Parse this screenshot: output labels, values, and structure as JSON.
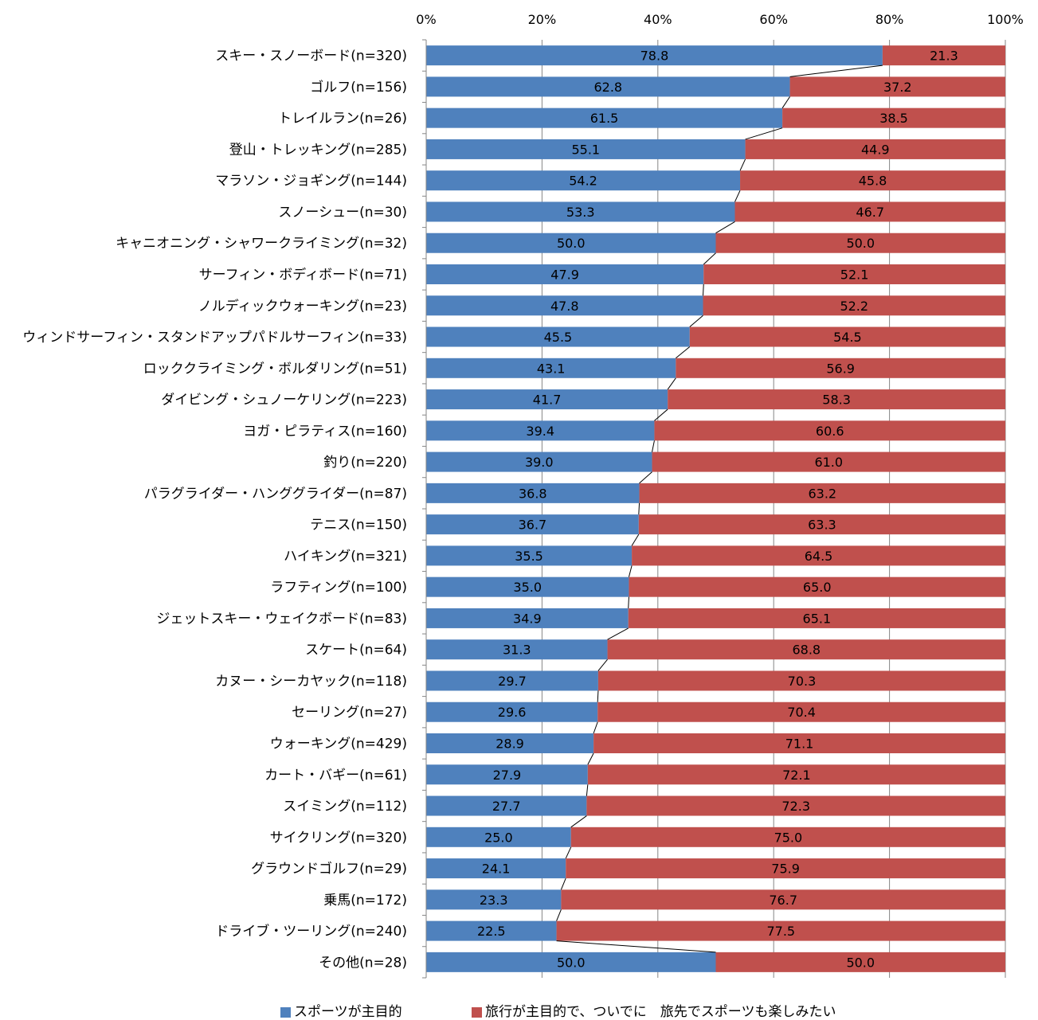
{
  "chart_data": {
    "type": "bar",
    "stacked": "percent",
    "orientation": "horizontal",
    "title": "",
    "xlabel": "",
    "ylabel": "",
    "xlim": [
      0,
      100
    ],
    "x_ticks": [
      "0%",
      "20%",
      "40%",
      "60%",
      "80%",
      "100%"
    ],
    "grid": true,
    "legend_position": "bottom",
    "categories": [
      "スキー・スノーボード(n=320)",
      "ゴルフ(n=156)",
      "トレイルラン(n=26)",
      "登山・トレッキング(n=285)",
      "マラソン・ジョギング(n=144)",
      "スノーシュー(n=30)",
      "キャニオニング・シャワークライミング(n=32)",
      "サーフィン・ボディボード(n=71)",
      "ノルディックウォーキング(n=23)",
      "ウィンドサーフィン・スタンドアップパドルサーフィン(n=33)",
      "ロッククライミング・ボルダリング(n=51)",
      "ダイビング・シュノーケリング(n=223)",
      "ヨガ・ピラティス(n=160)",
      "釣り(n=220)",
      "パラグライダー・ハンググライダー(n=87)",
      "テニス(n=150)",
      "ハイキング(n=321)",
      "ラフティング(n=100)",
      "ジェットスキー・ウェイクボード(n=83)",
      "スケート(n=64)",
      "カヌー・シーカヤック(n=118)",
      "セーリング(n=27)",
      "ウォーキング(n=429)",
      "カート・バギー(n=61)",
      "スイミング(n=112)",
      "サイクリング(n=320)",
      "グラウンドゴルフ(n=29)",
      "乗馬(n=172)",
      "ドライブ・ツーリング(n=240)",
      "その他(n=28)"
    ],
    "series": [
      {
        "name": "スポーツが主目的",
        "color": "#4F81BD",
        "values": [
          78.8,
          62.8,
          61.5,
          55.1,
          54.2,
          53.3,
          50.0,
          47.9,
          47.8,
          45.5,
          43.1,
          41.7,
          39.4,
          39.0,
          36.8,
          36.7,
          35.5,
          35.0,
          34.9,
          31.3,
          29.7,
          29.6,
          28.9,
          27.9,
          27.7,
          25.0,
          24.1,
          23.3,
          22.5,
          50.0
        ],
        "labels": [
          "78.8",
          "62.8",
          "61.5",
          "55.1",
          "54.2",
          "53.3",
          "50.0",
          "47.9",
          "47.8",
          "45.5",
          "43.1",
          "41.7",
          "39.4",
          "39.0",
          "36.8",
          "36.7",
          "35.5",
          "35.0",
          "34.9",
          "31.3",
          "29.7",
          "29.6",
          "28.9",
          "27.9",
          "27.7",
          "25.0",
          "24.1",
          "23.3",
          "22.5",
          "50.0"
        ]
      },
      {
        "name": "旅行が主目的で、ついでに　旅先でスポーツも楽しみたい",
        "color": "#C0504D",
        "values": [
          21.3,
          37.2,
          38.5,
          44.9,
          45.8,
          46.7,
          50.0,
          52.1,
          52.2,
          54.5,
          56.9,
          58.3,
          60.6,
          61.0,
          63.2,
          63.3,
          64.5,
          65.0,
          65.1,
          68.8,
          70.3,
          70.4,
          71.1,
          72.1,
          72.3,
          75.0,
          75.9,
          76.7,
          77.5,
          50.0
        ],
        "labels": [
          "21.3",
          "37.2",
          "38.5",
          "44.9",
          "45.8",
          "46.7",
          "50.0",
          "52.1",
          "52.2",
          "54.5",
          "56.9",
          "58.3",
          "60.6",
          "61.0",
          "63.2",
          "63.3",
          "64.5",
          "65.0",
          "65.1",
          "68.8",
          "70.3",
          "70.4",
          "71.1",
          "72.1",
          "72.3",
          "75.0",
          "75.9",
          "76.7",
          "77.5",
          "50.0"
        ]
      }
    ]
  }
}
